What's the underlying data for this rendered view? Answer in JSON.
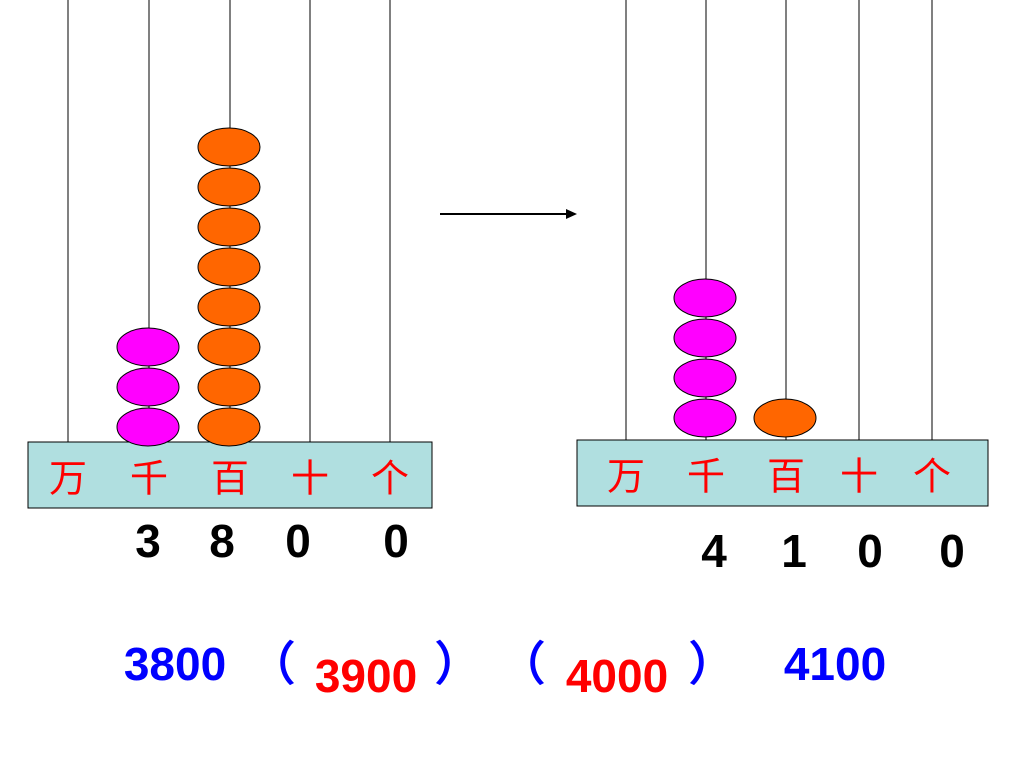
{
  "abacuses": [
    {
      "places": [
        "万",
        "千",
        "百",
        "十",
        "个"
      ],
      "digits": [
        3,
        8,
        0,
        0
      ]
    },
    {
      "places": [
        "万",
        "千",
        "百",
        "十",
        "个"
      ],
      "digits": [
        4,
        1,
        0,
        0
      ]
    }
  ],
  "sequence": [
    "3800",
    "（",
    "3900",
    "）",
    "（",
    "4000",
    "）",
    "4100"
  ]
}
